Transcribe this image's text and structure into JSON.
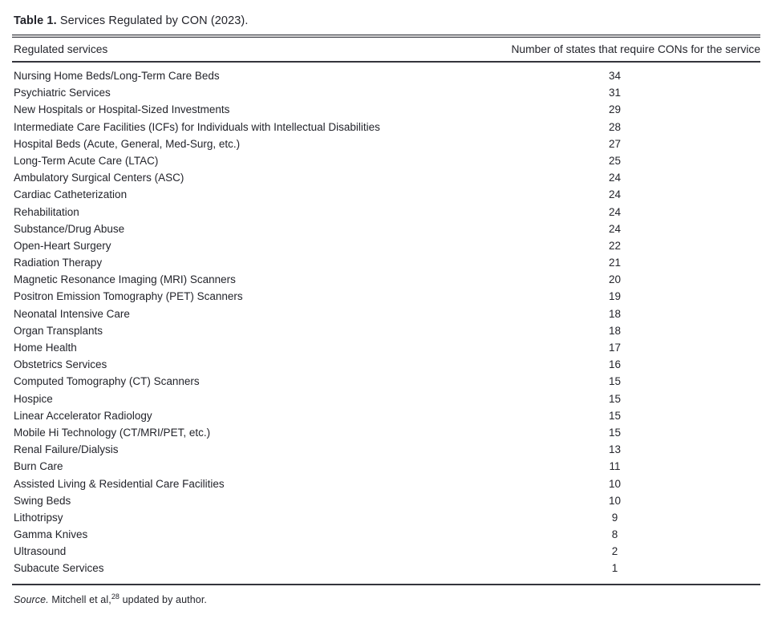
{
  "page": {
    "background_color": "#ffffff",
    "text_color": "#23242b",
    "rule_color": "#34353c"
  },
  "table": {
    "title_label": "Table 1.",
    "title_text": "Services Regulated by CON (2023).",
    "columns": [
      "Regulated services",
      "Number of states that require CONs for the service"
    ],
    "rows": [
      {
        "service": "Nursing Home Beds/Long-Term Care Beds",
        "states": "34"
      },
      {
        "service": "Psychiatric Services",
        "states": "31"
      },
      {
        "service": "New Hospitals or Hospital-Sized Investments",
        "states": "29"
      },
      {
        "service": "Intermediate Care Facilities (ICFs) for Individuals with Intellectual Disabilities",
        "states": "28"
      },
      {
        "service": "Hospital Beds (Acute, General, Med-Surg, etc.)",
        "states": "27"
      },
      {
        "service": "Long-Term Acute Care (LTAC)",
        "states": "25"
      },
      {
        "service": "Ambulatory Surgical Centers (ASC)",
        "states": "24"
      },
      {
        "service": "Cardiac Catheterization",
        "states": "24"
      },
      {
        "service": "Rehabilitation",
        "states": "24"
      },
      {
        "service": "Substance/Drug Abuse",
        "states": "24"
      },
      {
        "service": "Open-Heart Surgery",
        "states": "22"
      },
      {
        "service": "Radiation Therapy",
        "states": "21"
      },
      {
        "service": "Magnetic Resonance Imaging (MRI) Scanners",
        "states": "20"
      },
      {
        "service": "Positron Emission Tomography (PET) Scanners",
        "states": "19"
      },
      {
        "service": "Neonatal Intensive Care",
        "states": "18"
      },
      {
        "service": "Organ Transplants",
        "states": "18"
      },
      {
        "service": "Home Health",
        "states": "17"
      },
      {
        "service": "Obstetrics Services",
        "states": "16"
      },
      {
        "service": "Computed Tomography (CT) Scanners",
        "states": "15"
      },
      {
        "service": "Hospice",
        "states": "15"
      },
      {
        "service": "Linear Accelerator Radiology",
        "states": "15"
      },
      {
        "service": "Mobile Hi Technology (CT/MRI/PET, etc.)",
        "states": "15"
      },
      {
        "service": "Renal Failure/Dialysis",
        "states": "13"
      },
      {
        "service": "Burn Care",
        "states": "11"
      },
      {
        "service": "Assisted Living & Residential Care Facilities",
        "states": "10"
      },
      {
        "service": "Swing Beds",
        "states": "10"
      },
      {
        "service": "Lithotripsy",
        "states": "9"
      },
      {
        "service": "Gamma Knives",
        "states": "8"
      },
      {
        "service": "Ultrasound",
        "states": "2"
      },
      {
        "service": "Subacute Services",
        "states": "1"
      }
    ],
    "source": {
      "prefix": "Source.",
      "citation": " Mitchell et al,",
      "ref_mark": "28",
      "suffix": " updated by author."
    }
  },
  "chart_data": {
    "type": "table",
    "title": "Table 1. Services Regulated by CON (2023).",
    "columns": [
      "Regulated services",
      "Number of states that require CONs for the service"
    ],
    "categories": [
      "Nursing Home Beds/Long-Term Care Beds",
      "Psychiatric Services",
      "New Hospitals or Hospital-Sized Investments",
      "Intermediate Care Facilities (ICFs) for Individuals with Intellectual Disabilities",
      "Hospital Beds (Acute, General, Med-Surg, etc.)",
      "Long-Term Acute Care (LTAC)",
      "Ambulatory Surgical Centers (ASC)",
      "Cardiac Catheterization",
      "Rehabilitation",
      "Substance/Drug Abuse",
      "Open-Heart Surgery",
      "Radiation Therapy",
      "Magnetic Resonance Imaging (MRI) Scanners",
      "Positron Emission Tomography (PET) Scanners",
      "Neonatal Intensive Care",
      "Organ Transplants",
      "Home Health",
      "Obstetrics Services",
      "Computed Tomography (CT) Scanners",
      "Hospice",
      "Linear Accelerator Radiology",
      "Mobile Hi Technology (CT/MRI/PET, etc.)",
      "Renal Failure/Dialysis",
      "Burn Care",
      "Assisted Living & Residential Care Facilities",
      "Swing Beds",
      "Lithotripsy",
      "Gamma Knives",
      "Ultrasound",
      "Subacute Services"
    ],
    "values": [
      34,
      31,
      29,
      28,
      27,
      25,
      24,
      24,
      24,
      24,
      22,
      21,
      20,
      19,
      18,
      18,
      17,
      16,
      15,
      15,
      15,
      15,
      13,
      11,
      10,
      10,
      9,
      8,
      2,
      1
    ]
  }
}
